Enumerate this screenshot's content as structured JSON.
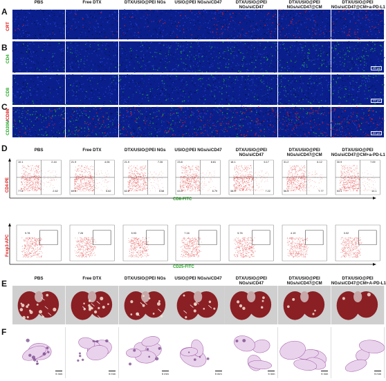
{
  "panels": {
    "a": "A",
    "b": "B",
    "c": "C",
    "d": "D",
    "e": "E",
    "f": "F"
  },
  "groups": [
    "PBS",
    "Free DTX",
    "DTX/USIO@PEI NGs",
    "USIO@PEI NGs/siCD47",
    "DTX/USIO@PEI\nNGs/siCD47",
    "DTX/USIO@PEI\nNGs/siCD47@CM",
    "DTX/USIO@PEI\nNGs/siCD47@CM+a-PD-L1"
  ],
  "groups_e": [
    "PBS",
    "Free DTX",
    "DTX/USIO@PEI NGs",
    "USIO@PEI NGs/siCD47",
    "DTX/USIO@PEI\nNGs/siCD47",
    "DTX/USIO@PEI\nNGs/siCD47@CM",
    "DTX/USIO@PEI\nNGs/siCD47@CM+A-PD-L1"
  ],
  "row_labels": {
    "crt": "CRT",
    "cd4": "CD4",
    "cd8": "CD8",
    "cd206_cd86_a": "CD206",
    "cd206_cd86_sep": "/",
    "cd206_cd86_b": "CD86"
  },
  "scalebar_text": "100 μm",
  "flow": {
    "cd4_cd8": {
      "y_label": "CD4-PE",
      "x_label": "CD8-FITC",
      "quadrants": [
        [
          "10.1",
          "2.44",
          "77.6",
          "2.62"
        ],
        [
          "21.9",
          "4.06",
          "69.6",
          "5.62"
        ],
        [
          "21.9",
          "7.26",
          "62.2",
          "5.58"
        ],
        [
          "23.8",
          "8.81",
          "63.5",
          "6.79"
        ],
        [
          "18.1",
          "6.17",
          "58.5",
          "7.22"
        ],
        [
          "31.2",
          "6.12",
          "56.5",
          "7.77"
        ],
        [
          "30.9",
          "7.09",
          "53.1",
          "10.1"
        ]
      ]
    },
    "treg": {
      "y_label": "Foxp3-APC",
      "x_label": "CD25-FITC",
      "values": [
        "9.78",
        "7.26",
        "5.93",
        "7.16",
        "5.76",
        "4.19",
        "3.02"
      ]
    }
  },
  "he_scale_text": "5 mm",
  "colors": {
    "if_blue": "#0a1f8c",
    "if_green": "#22c322",
    "if_red": "#e01818",
    "flow_red": "#e23b3b",
    "lung": "#8a1f24",
    "he_purple": "#a35aa8"
  }
}
